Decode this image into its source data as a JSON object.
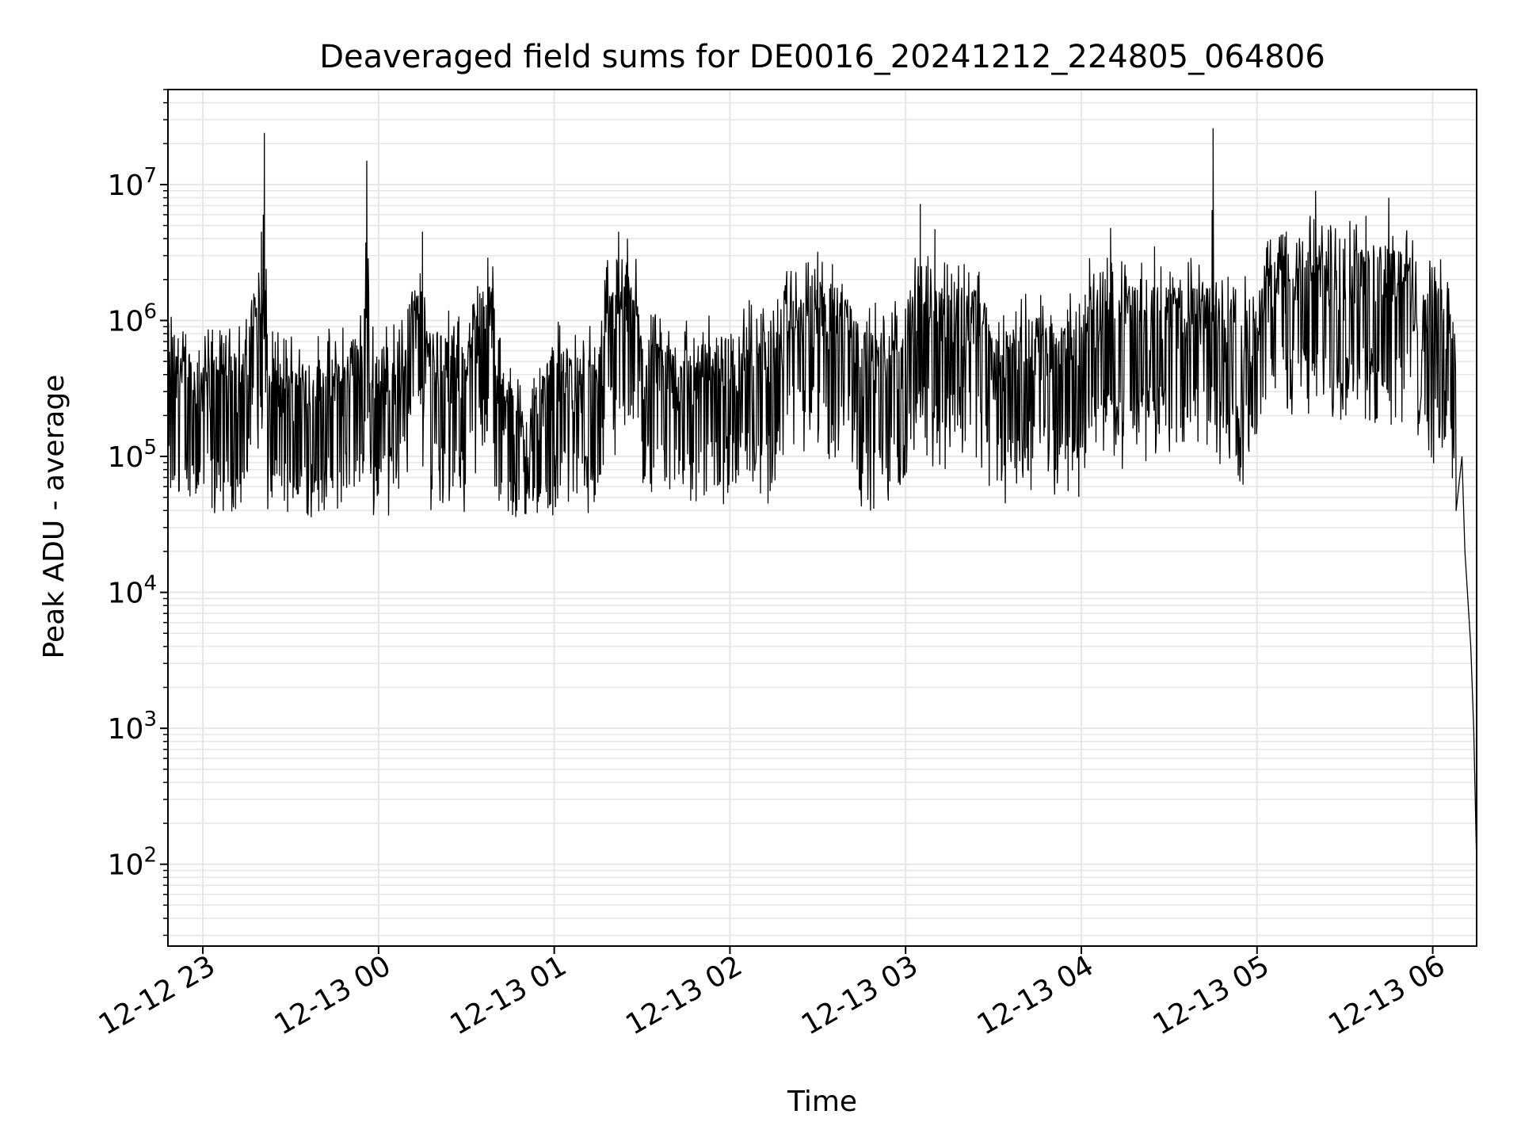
{
  "chart_data": {
    "type": "line",
    "title": "Deaveraged field sums for DE0016_20241212_224805_064806",
    "xlabel": "Time",
    "ylabel": "Peak ADU - average",
    "yscale": "log",
    "grid": true,
    "line_color": "#000000",
    "grid_color": "#e6e6e6",
    "xlim": [
      "2024-12-12T22:48:05",
      "2024-12-13T06:15:00"
    ],
    "ylim": [
      25,
      50000000
    ],
    "x_ticks": [
      {
        "label": "12-12 23",
        "time": "2024-12-12T23:00:00"
      },
      {
        "label": "12-13 00",
        "time": "2024-12-13T00:00:00"
      },
      {
        "label": "12-13 01",
        "time": "2024-12-13T01:00:00"
      },
      {
        "label": "12-13 02",
        "time": "2024-12-13T02:00:00"
      },
      {
        "label": "12-13 03",
        "time": "2024-12-13T03:00:00"
      },
      {
        "label": "12-13 04",
        "time": "2024-12-13T04:00:00"
      },
      {
        "label": "12-13 05",
        "time": "2024-12-13T05:00:00"
      },
      {
        "label": "12-13 06",
        "time": "2024-12-13T06:00:00"
      }
    ],
    "y_ticks": [
      {
        "base": "10",
        "exp": "2",
        "value": 100
      },
      {
        "base": "10",
        "exp": "3",
        "value": 1000
      },
      {
        "base": "10",
        "exp": "4",
        "value": 10000
      },
      {
        "base": "10",
        "exp": "5",
        "value": 100000
      },
      {
        "base": "10",
        "exp": "6",
        "value": 1000000
      },
      {
        "base": "10",
        "exp": "7",
        "value": 10000000
      }
    ],
    "series": [
      {
        "data": [
          [
            "2024-12-12T22:48:05",
            400000
          ],
          [
            "2024-12-12T22:55:00",
            350000
          ],
          [
            "2024-12-12T23:05:00",
            320000
          ],
          [
            "2024-12-12T23:15:00",
            350000
          ],
          [
            "2024-12-12T23:20:00",
            4500000
          ],
          [
            "2024-12-12T23:21:00",
            24000000
          ],
          [
            "2024-12-12T23:22:00",
            300000
          ],
          [
            "2024-12-12T23:30:00",
            280000
          ],
          [
            "2024-12-12T23:45:00",
            300000
          ],
          [
            "2024-12-12T23:55:00",
            400000
          ],
          [
            "2024-12-12T23:56:00",
            15000000
          ],
          [
            "2024-12-12T23:57:00",
            350000
          ],
          [
            "2024-12-13T00:08:00",
            400000
          ],
          [
            "2024-12-13T00:13:00",
            1500000
          ],
          [
            "2024-12-13T00:15:00",
            4500000
          ],
          [
            "2024-12-13T00:16:00",
            500000
          ],
          [
            "2024-12-13T00:30:00",
            350000
          ],
          [
            "2024-12-13T00:39:00",
            2500000
          ],
          [
            "2024-12-13T00:40:00",
            300000
          ],
          [
            "2024-12-13T00:50:00",
            120000
          ],
          [
            "2024-12-13T01:00:00",
            350000
          ],
          [
            "2024-12-13T01:15:00",
            300000
          ],
          [
            "2024-12-13T01:22:00",
            4500000
          ],
          [
            "2024-12-13T01:25:00",
            4000000
          ],
          [
            "2024-12-13T01:30:00",
            400000
          ],
          [
            "2024-12-13T01:45:00",
            350000
          ],
          [
            "2024-12-13T02:00:00",
            450000
          ],
          [
            "2024-12-13T02:15:00",
            500000
          ],
          [
            "2024-12-13T02:30:00",
            3200000
          ],
          [
            "2024-12-13T02:35:00",
            2600000
          ],
          [
            "2024-12-13T02:45:00",
            450000
          ],
          [
            "2024-12-13T03:00:00",
            500000
          ],
          [
            "2024-12-13T03:05:00",
            7200000
          ],
          [
            "2024-12-13T03:10:00",
            4700000
          ],
          [
            "2024-12-13T03:20:00",
            2600000
          ],
          [
            "2024-12-13T03:30:00",
            400000
          ],
          [
            "2024-12-13T03:45:00",
            600000
          ],
          [
            "2024-12-13T04:00:00",
            550000
          ],
          [
            "2024-12-13T04:10:00",
            4800000
          ],
          [
            "2024-12-13T04:25:00",
            3500000
          ],
          [
            "2024-12-13T04:45:00",
            26000000
          ],
          [
            "2024-12-13T04:46:00",
            800000
          ],
          [
            "2024-12-13T05:00:00",
            700000
          ],
          [
            "2024-12-13T05:10:00",
            4500000
          ],
          [
            "2024-12-13T05:20:00",
            9000000
          ],
          [
            "2024-12-13T05:30:00",
            4000000
          ],
          [
            "2024-12-13T05:45:00",
            8000000
          ],
          [
            "2024-12-13T05:55:00",
            900000
          ],
          [
            "2024-12-13T06:05:00",
            1000000
          ],
          [
            "2024-12-13T06:08:00",
            400000
          ],
          [
            "2024-12-13T06:10:00",
            100000
          ],
          [
            "2024-12-13T06:11:00",
            20000
          ],
          [
            "2024-12-13T06:13:00",
            4000
          ],
          [
            "2024-12-13T06:14:00",
            1000
          ],
          [
            "2024-12-13T06:15:00",
            100
          ]
        ],
        "typical_upper": 1000000,
        "typical_lower": 50000
      }
    ]
  }
}
